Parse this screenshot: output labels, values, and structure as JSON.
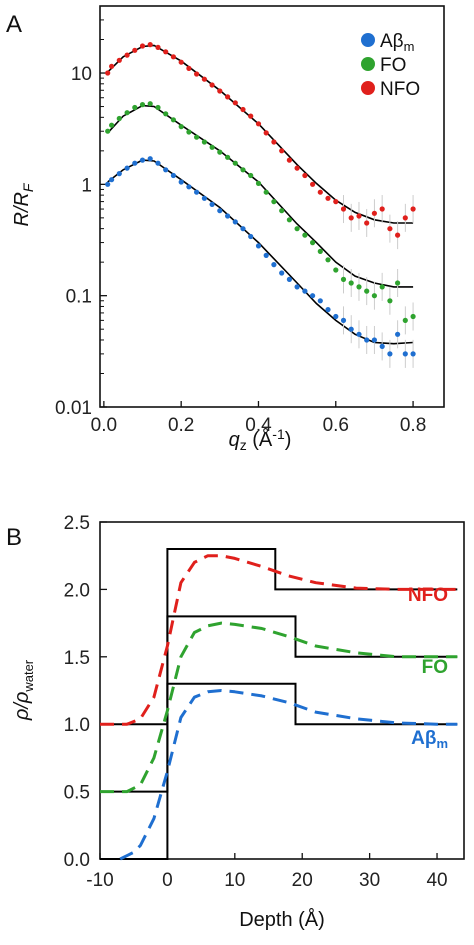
{
  "chart_data": [
    {
      "panel": "A",
      "type": "scatter",
      "yscale": "log",
      "xlabel_main": "q",
      "xlabel_sub": "z",
      "xlabel_unit": " (Å",
      "xlabel_exp": "-1",
      "xlabel_close": ")",
      "ylabel_main": "R/R",
      "ylabel_sub": "F",
      "xlim": [
        -0.01,
        0.88
      ],
      "ylim": [
        0.01,
        40
      ],
      "x_ticks": [
        0.0,
        0.2,
        0.4,
        0.6,
        0.8
      ],
      "x_tick_labels": [
        "0.0",
        "0.2",
        "0.4",
        "0.6",
        "0.8"
      ],
      "y_ticks": [
        0.01,
        0.1,
        1,
        10
      ],
      "y_tick_labels": [
        "0.01",
        "0.1",
        "1",
        "10"
      ],
      "legend_position": "top-right",
      "fit_line_color": "#000000",
      "series": [
        {
          "name_main": "Aβ",
          "name_sub": "m",
          "color": "#1f6fd0",
          "x": [
            0.01,
            0.02,
            0.04,
            0.06,
            0.08,
            0.1,
            0.12,
            0.14,
            0.16,
            0.18,
            0.2,
            0.22,
            0.24,
            0.26,
            0.28,
            0.3,
            0.32,
            0.34,
            0.36,
            0.38,
            0.4,
            0.42,
            0.44,
            0.46,
            0.48,
            0.5,
            0.52,
            0.54,
            0.56,
            0.58,
            0.6,
            0.62,
            0.64,
            0.66,
            0.68,
            0.7,
            0.72,
            0.74,
            0.76,
            0.78,
            0.8
          ],
          "y": [
            1.0,
            1.1,
            1.25,
            1.4,
            1.55,
            1.65,
            1.7,
            1.55,
            1.35,
            1.2,
            1.05,
            0.95,
            0.85,
            0.75,
            0.66,
            0.58,
            0.52,
            0.46,
            0.4,
            0.34,
            0.28,
            0.23,
            0.19,
            0.16,
            0.14,
            0.12,
            0.11,
            0.1,
            0.09,
            0.075,
            0.065,
            0.06,
            0.05,
            0.045,
            0.04,
            0.04,
            0.035,
            0.03,
            0.045,
            0.03,
            0.03
          ]
        },
        {
          "name_main": "FO",
          "name_sub": "",
          "color": "#2fa32f",
          "x": [
            0.01,
            0.02,
            0.04,
            0.06,
            0.08,
            0.1,
            0.12,
            0.14,
            0.16,
            0.18,
            0.2,
            0.22,
            0.24,
            0.26,
            0.28,
            0.3,
            0.32,
            0.34,
            0.36,
            0.38,
            0.4,
            0.42,
            0.44,
            0.46,
            0.48,
            0.5,
            0.52,
            0.54,
            0.56,
            0.58,
            0.6,
            0.62,
            0.64,
            0.66,
            0.68,
            0.7,
            0.72,
            0.74,
            0.76,
            0.78,
            0.8
          ],
          "y": [
            3.0,
            3.4,
            3.9,
            4.4,
            4.9,
            5.2,
            5.3,
            4.9,
            4.3,
            3.8,
            3.3,
            2.95,
            2.65,
            2.4,
            2.15,
            1.95,
            1.75,
            1.55,
            1.35,
            1.2,
            1.02,
            0.85,
            0.7,
            0.58,
            0.48,
            0.4,
            0.35,
            0.3,
            0.25,
            0.21,
            0.17,
            0.14,
            0.13,
            0.12,
            0.11,
            0.1,
            0.12,
            0.09,
            0.13,
            0.06,
            0.065
          ]
        },
        {
          "name_main": "NFO",
          "name_sub": "",
          "color": "#e0201c",
          "x": [
            0.01,
            0.02,
            0.04,
            0.06,
            0.08,
            0.1,
            0.12,
            0.14,
            0.16,
            0.18,
            0.2,
            0.22,
            0.24,
            0.26,
            0.28,
            0.3,
            0.32,
            0.34,
            0.36,
            0.38,
            0.4,
            0.42,
            0.44,
            0.46,
            0.48,
            0.5,
            0.52,
            0.54,
            0.56,
            0.58,
            0.6,
            0.62,
            0.64,
            0.66,
            0.68,
            0.7,
            0.72,
            0.74,
            0.76,
            0.78,
            0.8
          ],
          "y": [
            10.0,
            11.5,
            13.0,
            14.5,
            16.0,
            17.5,
            18.0,
            17.0,
            15.5,
            14.0,
            12.5,
            11.0,
            9.8,
            8.8,
            7.8,
            6.9,
            6.1,
            5.4,
            4.7,
            4.1,
            3.5,
            2.9,
            2.4,
            2.0,
            1.65,
            1.4,
            1.2,
            1.0,
            0.85,
            0.75,
            0.7,
            0.6,
            0.5,
            0.52,
            0.45,
            0.55,
            0.6,
            0.4,
            0.35,
            0.5,
            0.6
          ]
        }
      ],
      "fits": [
        {
          "x": [
            0.01,
            0.05,
            0.1,
            0.13,
            0.2,
            0.3,
            0.4,
            0.5,
            0.55,
            0.6,
            0.65,
            0.7,
            0.75,
            0.8
          ],
          "y": [
            1.05,
            1.35,
            1.65,
            1.62,
            1.1,
            0.62,
            0.3,
            0.13,
            0.085,
            0.06,
            0.045,
            0.038,
            0.037,
            0.038
          ]
        },
        {
          "x": [
            0.01,
            0.05,
            0.1,
            0.13,
            0.2,
            0.3,
            0.4,
            0.5,
            0.55,
            0.6,
            0.65,
            0.7,
            0.75,
            0.8
          ],
          "y": [
            2.9,
            4.1,
            5.1,
            5.0,
            3.4,
            2.0,
            1.05,
            0.44,
            0.3,
            0.2,
            0.15,
            0.13,
            0.12,
            0.12
          ]
        },
        {
          "x": [
            0.01,
            0.05,
            0.1,
            0.13,
            0.2,
            0.3,
            0.4,
            0.5,
            0.55,
            0.6,
            0.65,
            0.7,
            0.75,
            0.8
          ],
          "y": [
            10.2,
            14.0,
            17.3,
            17.7,
            12.8,
            7.0,
            3.5,
            1.5,
            1.02,
            0.72,
            0.56,
            0.48,
            0.45,
            0.45
          ]
        }
      ]
    },
    {
      "panel": "B",
      "type": "line",
      "xlabel": "Depth (Å)",
      "ylabel_main": "ρ/ρ",
      "ylabel_sub": "water",
      "xlim": [
        -10,
        44
      ],
      "ylim": [
        0.0,
        2.5
      ],
      "x_ticks": [
        -10,
        0,
        10,
        20,
        30,
        40
      ],
      "x_tick_labels": [
        "-10",
        "0",
        "10",
        "20",
        "30",
        "40"
      ],
      "y_ticks": [
        0.0,
        0.5,
        1.0,
        1.5,
        2.0,
        2.5
      ],
      "y_tick_labels": [
        "0.0",
        "0.5",
        "1.0",
        "1.5",
        "2.0",
        "2.5"
      ],
      "series": [
        {
          "name_main": "NFO",
          "name_sub": "",
          "color": "#e0201c",
          "step_x": [
            -10,
            0,
            0,
            16,
            16,
            43
          ],
          "step_y": [
            1.0,
            1.0,
            2.3,
            2.3,
            2.0,
            2.0
          ],
          "smooth_x": [
            -10,
            -6,
            -4,
            -2,
            0,
            2,
            4,
            6,
            8,
            10,
            14,
            18,
            22,
            28,
            34,
            40,
            43
          ],
          "smooth_y": [
            1.0,
            1.0,
            1.04,
            1.2,
            1.58,
            2.05,
            2.2,
            2.25,
            2.25,
            2.23,
            2.17,
            2.1,
            2.05,
            2.01,
            2.0,
            2.0,
            2.0
          ]
        },
        {
          "name_main": "FO",
          "name_sub": "",
          "color": "#2fa32f",
          "step_x": [
            -10,
            0,
            0,
            19,
            19,
            43
          ],
          "step_y": [
            0.5,
            0.5,
            1.8,
            1.8,
            1.5,
            1.5
          ],
          "smooth_x": [
            -10,
            -6,
            -4,
            -2,
            0,
            2,
            4,
            6,
            8,
            10,
            14,
            18,
            22,
            28,
            34,
            40,
            43
          ],
          "smooth_y": [
            0.5,
            0.5,
            0.55,
            0.75,
            1.1,
            1.5,
            1.68,
            1.73,
            1.75,
            1.74,
            1.71,
            1.65,
            1.58,
            1.53,
            1.5,
            1.5,
            1.5
          ]
        },
        {
          "name_main": "Aβ",
          "name_sub": "m",
          "color": "#1f6fd0",
          "step_x": [
            -10,
            0,
            0,
            0,
            19,
            19,
            43
          ],
          "step_y": [
            0.0,
            0.0,
            0.0,
            1.3,
            1.3,
            1.0,
            1.0
          ],
          "smooth_x": [
            -7,
            -5,
            -4,
            -2,
            0,
            2,
            4,
            6,
            8,
            10,
            14,
            18,
            22,
            28,
            34,
            40,
            43
          ],
          "smooth_y": [
            0.0,
            0.05,
            0.1,
            0.3,
            0.65,
            1.05,
            1.2,
            1.24,
            1.25,
            1.24,
            1.21,
            1.16,
            1.09,
            1.04,
            1.01,
            1.0,
            1.0
          ]
        }
      ]
    }
  ]
}
